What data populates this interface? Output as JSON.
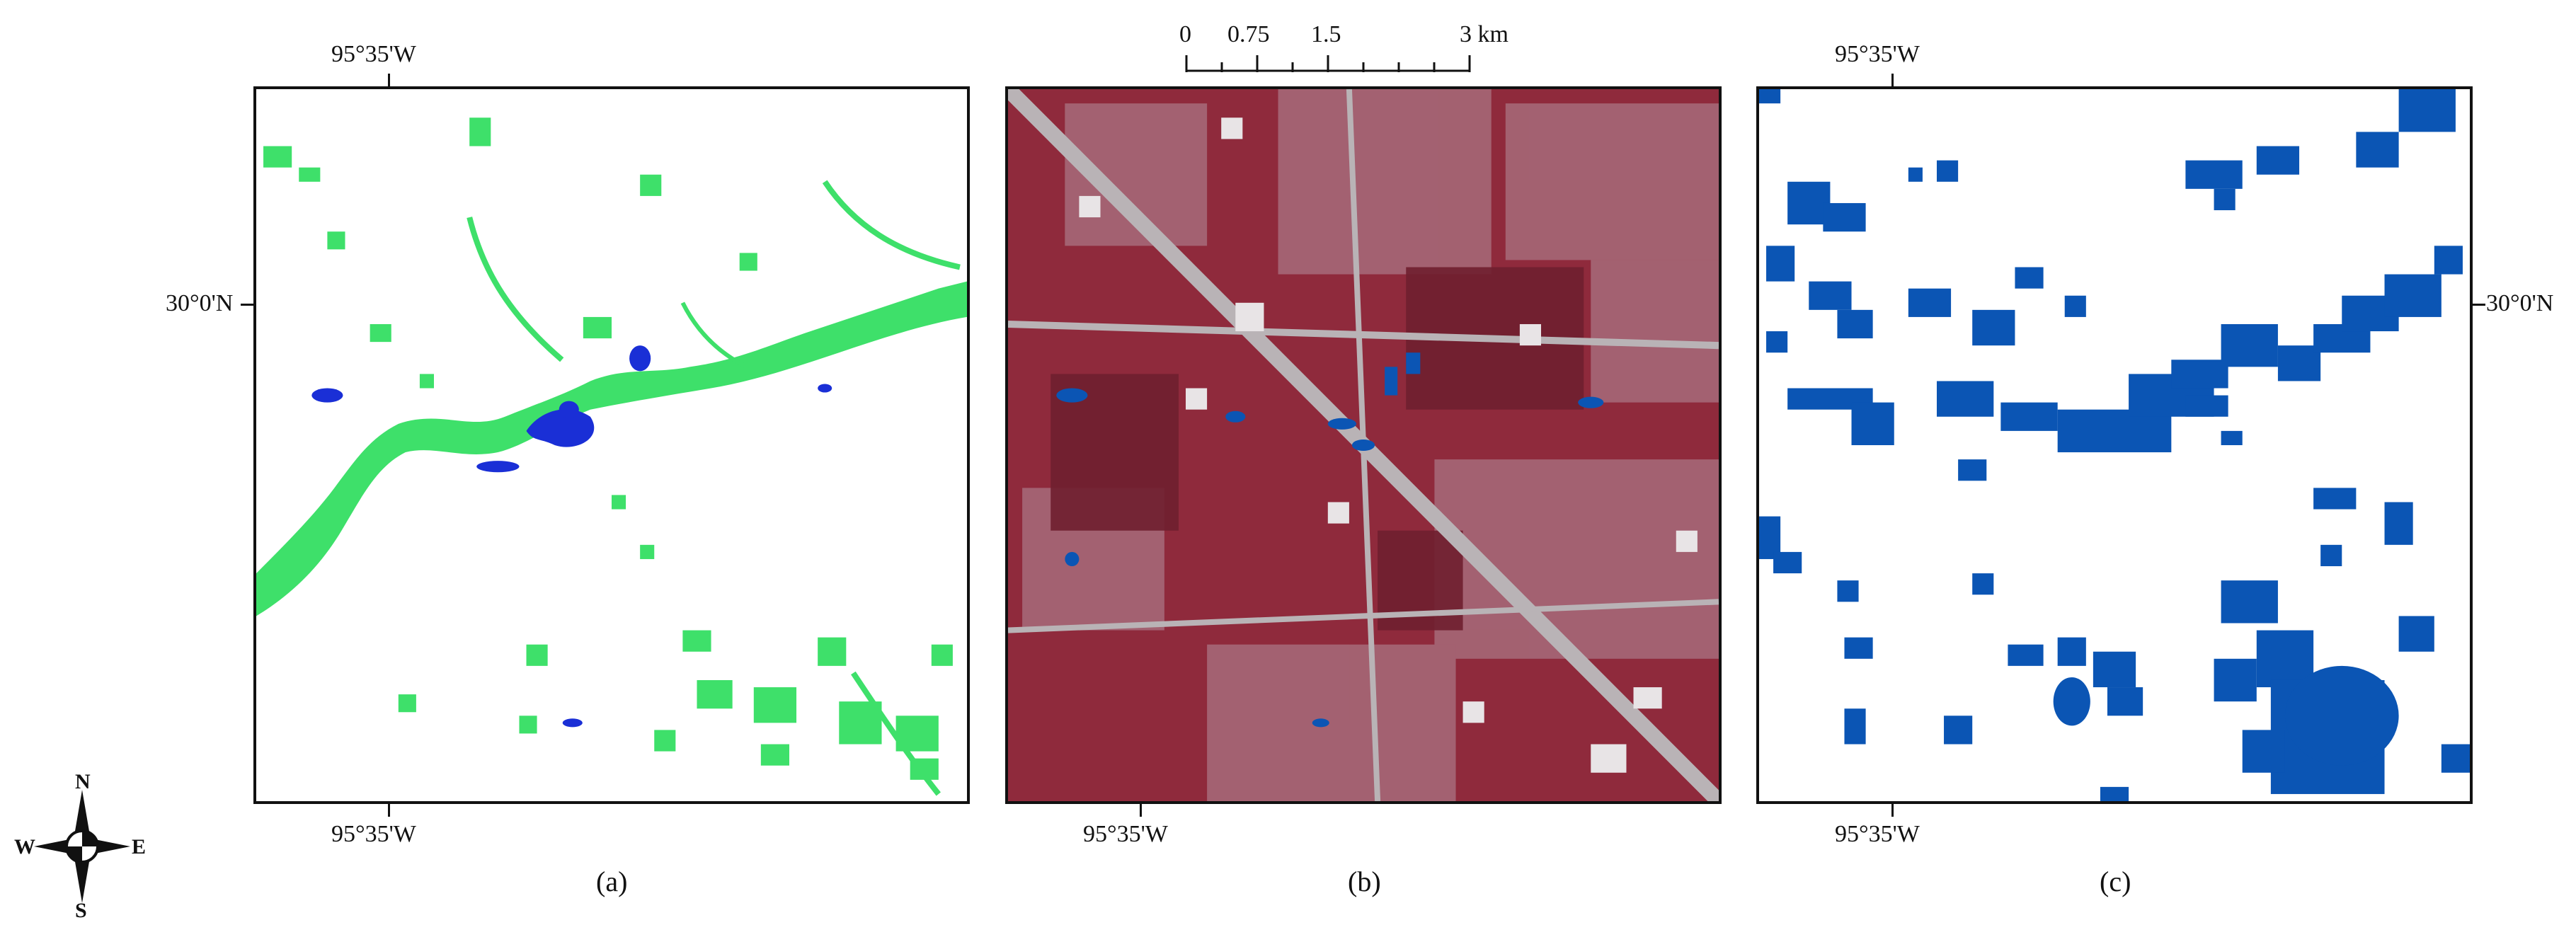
{
  "panels": [
    {
      "id": "a",
      "caption": "(a)",
      "lon_top": "95°35'W",
      "lon_bottom": "95°35'W",
      "lat_left": "30°0'N"
    },
    {
      "id": "b",
      "caption": "(b)",
      "lon_bottom": "95°35'W"
    },
    {
      "id": "c",
      "caption": "(c)",
      "lon_top": "95°35'W",
      "lon_bottom": "95°35'W",
      "lat_right": "30°0'N"
    }
  ],
  "scale_bar": {
    "labels": [
      "0",
      "0.75",
      "1.5",
      "3 km"
    ]
  },
  "compass": {
    "n": "N",
    "s": "S",
    "e": "E",
    "w": "W"
  },
  "colors": {
    "flood_green": "#3ee06a",
    "water_blue": "#1a2fd6",
    "water_blue_c": "#0b55b4",
    "false_color_red": "#8f2a3c",
    "urban_gray": "#b9b3b6"
  }
}
